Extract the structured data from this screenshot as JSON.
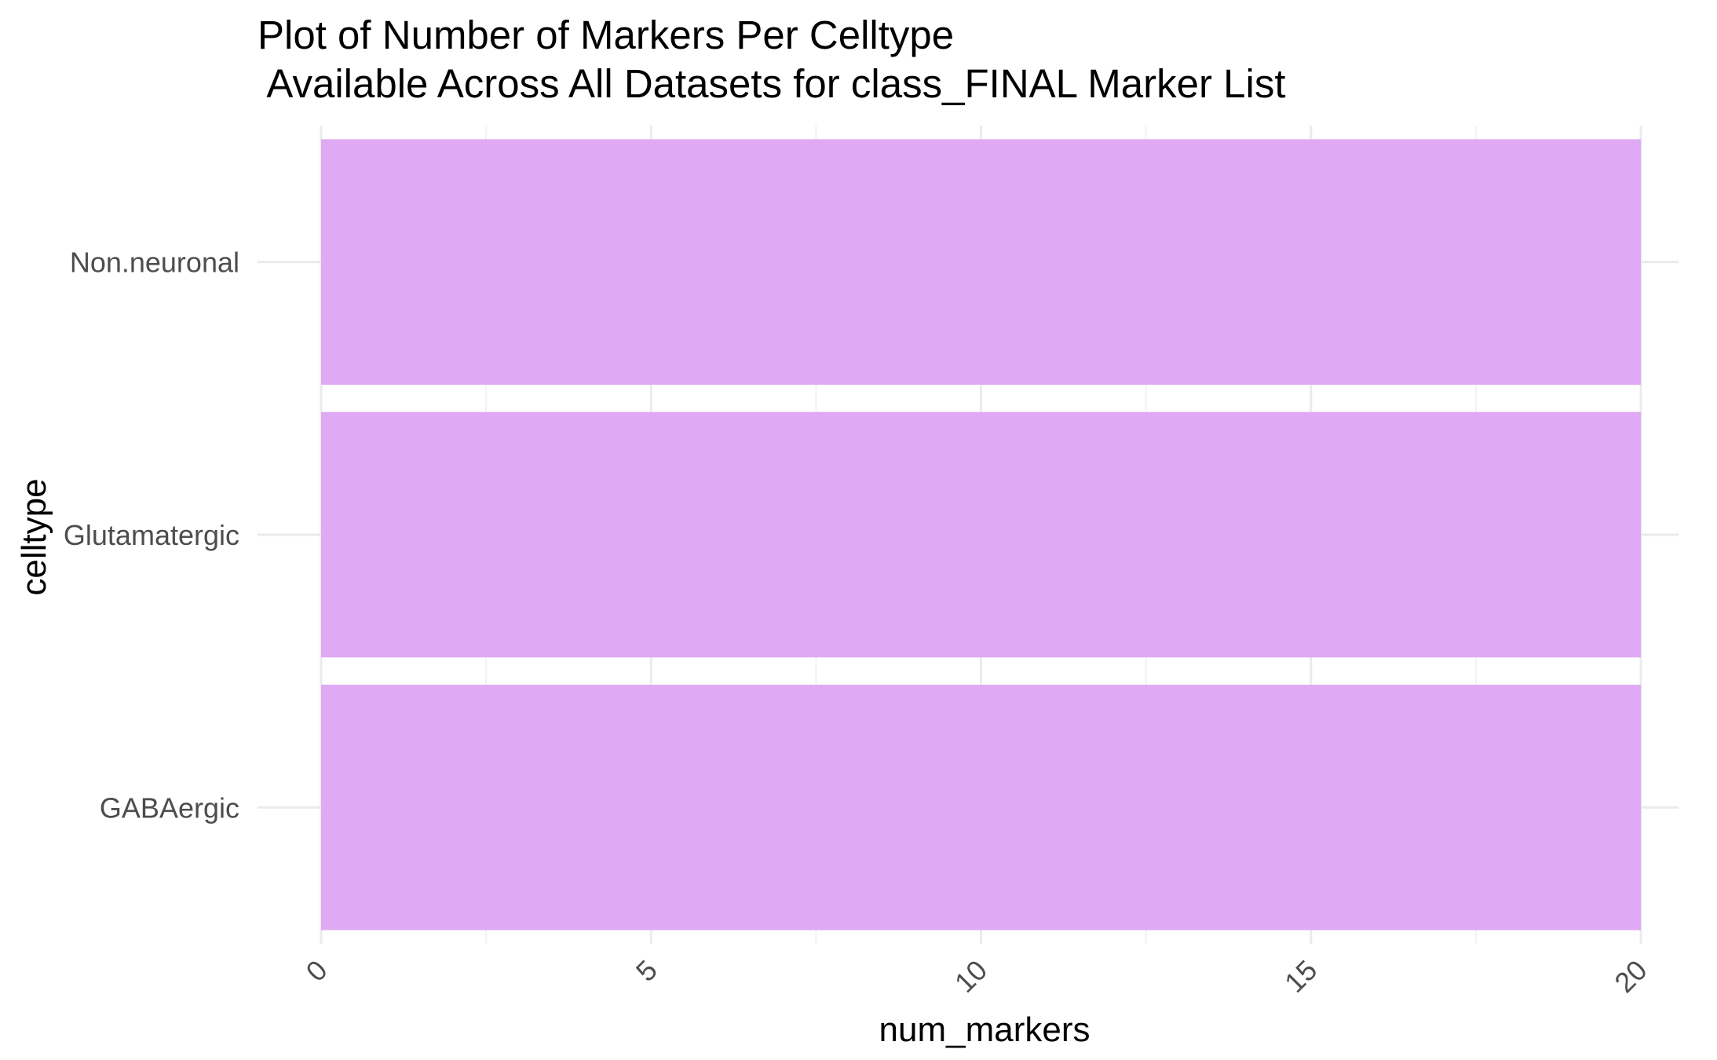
{
  "chart_data": {
    "type": "bar",
    "orientation": "horizontal",
    "title_lines": [
      "Plot of Number of Markers Per Celltype",
      " Available Across All Datasets for class_FINAL Marker List"
    ],
    "xlabel": "num_markers",
    "ylabel": "celltype",
    "categories": [
      "GABAergic",
      "Glutamatergic",
      "Non.neuronal"
    ],
    "values": [
      20,
      20,
      20
    ],
    "xlim": [
      0,
      20
    ],
    "xticks": [
      0,
      5,
      10,
      15,
      20
    ],
    "xtick_labels": [
      "0",
      "5",
      "10",
      "15",
      "20"
    ],
    "xtick_rotation": "45",
    "grid": true,
    "legend": "none",
    "colors": {
      "bar_fill": "#dfaaf3",
      "grid_major": "#ebebeb",
      "grid_minor": "#f2f2f2",
      "background": "#ffffff"
    }
  }
}
